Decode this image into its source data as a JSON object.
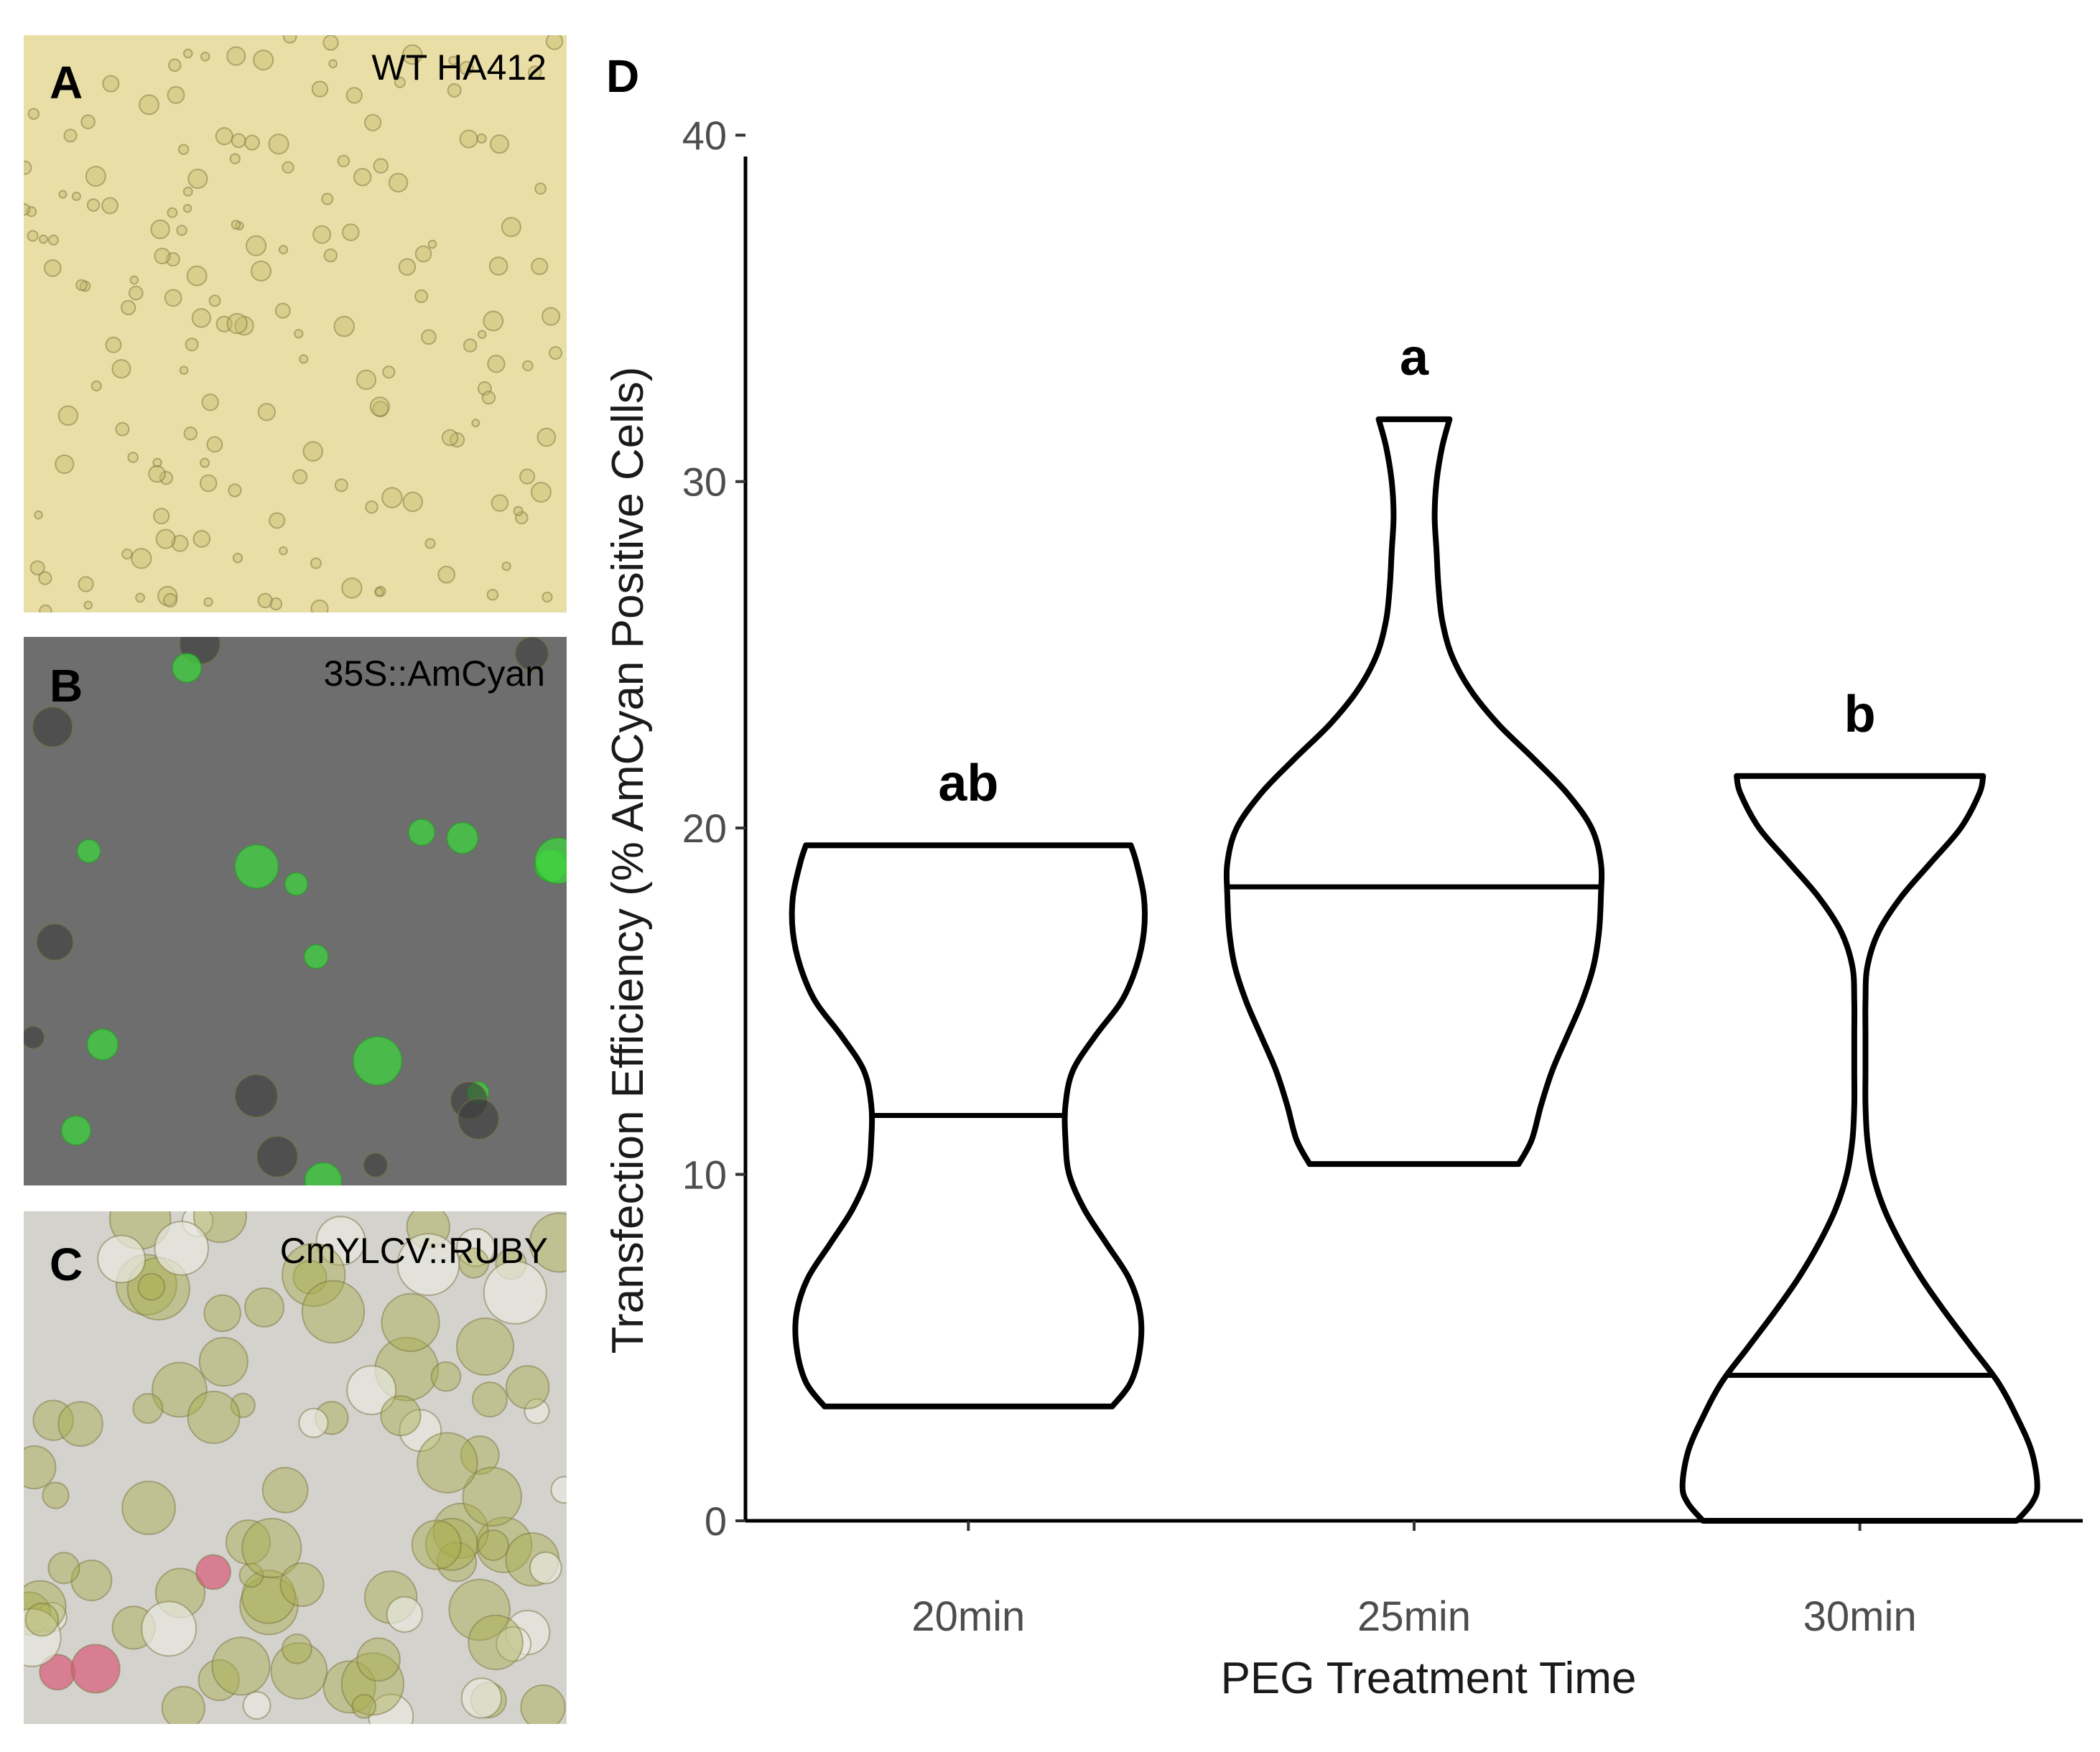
{
  "panels": [
    {
      "letter": "A",
      "caption": "WT HA412",
      "bg": "#e9dfa6",
      "cell": "#c6bb6c",
      "letter_color": "#000000",
      "caption_color": "#1a1a1a"
    },
    {
      "letter": "B",
      "caption": "35S::AmCyan",
      "bg": "#6e6e6e",
      "cell": "#3fd43f",
      "letter_color": "#ffffff",
      "caption_color": "#ffffff"
    },
    {
      "letter": "C",
      "caption": "CmYLCV::RUBY",
      "bg": "#d4d2cc",
      "cell": "#a9ad4e",
      "letter_color": "#000000",
      "caption_color": "#000000"
    }
  ],
  "chart_panel_letter": "D",
  "chart_data": {
    "type": "violin",
    "xlabel": "PEG Treatment Time",
    "ylabel": "Transfection Efficiency (% AmCyan Positive Cells)",
    "ylim": [
      0,
      41
    ],
    "yticks": [
      0,
      10,
      20,
      30,
      40
    ],
    "categories": [
      "20min",
      "25min",
      "30min"
    ],
    "grid": false,
    "violins": [
      {
        "category": "20min",
        "min": 3.3,
        "max": 19.5,
        "median": 11.7,
        "significance": "ab",
        "profile": [
          [
            3.3,
            0.77
          ],
          [
            4,
            0.87
          ],
          [
            5,
            0.92
          ],
          [
            6,
            0.92
          ],
          [
            7,
            0.86
          ],
          [
            8,
            0.74
          ],
          [
            9,
            0.62
          ],
          [
            10,
            0.54
          ],
          [
            11,
            0.52
          ],
          [
            12,
            0.52
          ],
          [
            13,
            0.56
          ],
          [
            14,
            0.68
          ],
          [
            15,
            0.82
          ],
          [
            16,
            0.9
          ],
          [
            17,
            0.94
          ],
          [
            18,
            0.94
          ],
          [
            19,
            0.9
          ],
          [
            19.5,
            0.87
          ]
        ]
      },
      {
        "category": "25min",
        "min": 10.3,
        "max": 31.8,
        "median": 18.3,
        "significance": "a",
        "profile": [
          [
            10.3,
            0.56
          ],
          [
            11,
            0.63
          ],
          [
            12,
            0.68
          ],
          [
            13,
            0.74
          ],
          [
            14,
            0.82
          ],
          [
            15,
            0.9
          ],
          [
            16,
            0.96
          ],
          [
            17,
            0.99
          ],
          [
            18,
            1.0
          ],
          [
            19,
            1.0
          ],
          [
            20,
            0.95
          ],
          [
            21,
            0.82
          ],
          [
            22,
            0.64
          ],
          [
            23,
            0.45
          ],
          [
            24,
            0.3
          ],
          [
            25,
            0.2
          ],
          [
            26,
            0.15
          ],
          [
            27,
            0.13
          ],
          [
            28,
            0.12
          ],
          [
            29,
            0.11
          ],
          [
            30,
            0.12
          ],
          [
            31,
            0.15
          ],
          [
            31.8,
            0.19
          ]
        ]
      },
      {
        "category": "30min",
        "min": 0,
        "max": 21.5,
        "median": 4.2,
        "significance": "b",
        "profile": [
          [
            0,
            0.84
          ],
          [
            0.5,
            0.92
          ],
          [
            1,
            0.95
          ],
          [
            2,
            0.92
          ],
          [
            3,
            0.84
          ],
          [
            4,
            0.74
          ],
          [
            5,
            0.6
          ],
          [
            6,
            0.46
          ],
          [
            7,
            0.33
          ],
          [
            8,
            0.22
          ],
          [
            9,
            0.13
          ],
          [
            10,
            0.07
          ],
          [
            11,
            0.04
          ],
          [
            12,
            0.03
          ],
          [
            13,
            0.03
          ],
          [
            14,
            0.03
          ],
          [
            15,
            0.03
          ],
          [
            16,
            0.04
          ],
          [
            17,
            0.1
          ],
          [
            18,
            0.22
          ],
          [
            19,
            0.38
          ],
          [
            20,
            0.54
          ],
          [
            21,
            0.64
          ],
          [
            21.5,
            0.66
          ]
        ]
      }
    ]
  }
}
